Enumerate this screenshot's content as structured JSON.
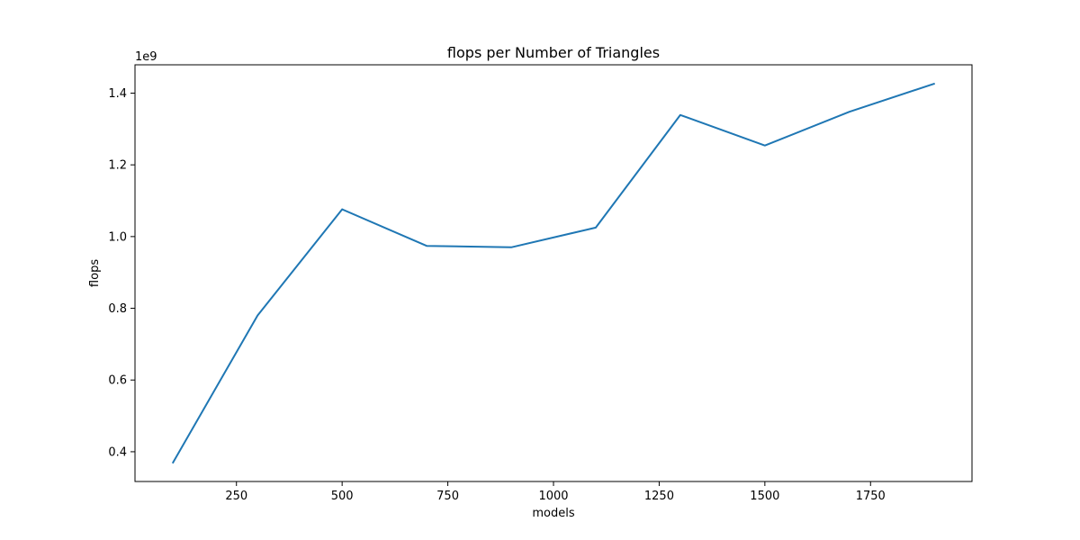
{
  "chart_data": {
    "type": "line",
    "title": "flops per Number of Triangles",
    "xlabel": "models",
    "ylabel": "flops",
    "y_offset_label": "1e9",
    "x": [
      100,
      300,
      500,
      700,
      900,
      1100,
      1300,
      1500,
      1700,
      1900
    ],
    "series": [
      {
        "values": [
          0.37,
          0.78,
          1.076,
          0.974,
          0.97,
          1.025,
          1.339,
          1.254,
          1.348,
          1.426
        ],
        "color": "#1f77b4"
      }
    ],
    "xlim": [
      10,
      1990
    ],
    "ylim": [
      0.317,
      1.479
    ],
    "x_ticks": [
      250,
      500,
      750,
      1000,
      1250,
      1500,
      1750
    ],
    "x_tick_labels": [
      "250",
      "500",
      "750",
      "1000",
      "1250",
      "1500",
      "1750"
    ],
    "y_ticks": [
      0.4,
      0.6,
      0.8,
      1.0,
      1.2,
      1.4
    ],
    "y_tick_labels": [
      "0.4",
      "0.6",
      "0.8",
      "1.0",
      "1.2",
      "1.4"
    ],
    "grid": false,
    "legend": "none"
  }
}
